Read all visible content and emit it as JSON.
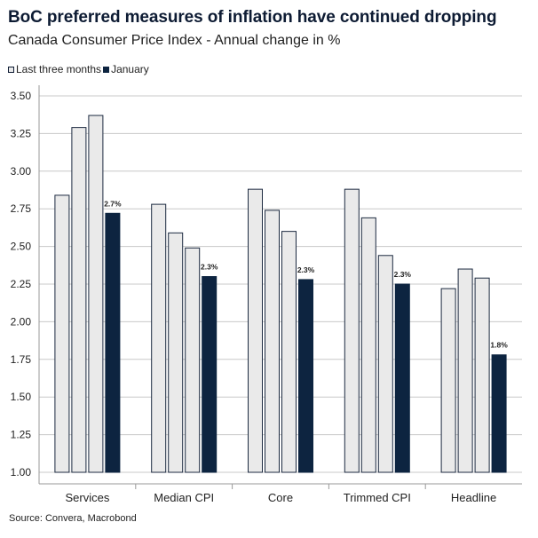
{
  "title": "BoC preferred measures of inflation have continued dropping",
  "subtitle": "Canada Consumer Price Index - Annual change in %",
  "source": "Source: Convera, Macrobond",
  "colors": {
    "light_bar": "#eaeaea",
    "dark_bar": "#0d2440",
    "grid": "#c8c8c8",
    "outline": "#1c2a40"
  },
  "legend": [
    {
      "label": "Last three months",
      "icon": "light-square"
    },
    {
      "label": "January",
      "icon": "dark-square"
    }
  ],
  "chart_data": {
    "type": "bar",
    "categories": [
      "Services",
      "Median CPI",
      "Core",
      "Trimmed CPI",
      "Headline"
    ],
    "series": [
      {
        "name": "Last three months",
        "values": [
          [
            2.84,
            3.29,
            3.37
          ],
          [
            2.78,
            2.59,
            2.49
          ],
          [
            2.88,
            2.74,
            2.6
          ],
          [
            2.88,
            2.69,
            2.44
          ],
          [
            2.22,
            2.35,
            2.29
          ]
        ]
      },
      {
        "name": "January",
        "values": [
          2.72,
          2.3,
          2.28,
          2.25,
          1.78
        ]
      }
    ],
    "data_labels": [
      "2.7%",
      "2.3%",
      "2.3%",
      "2.3%",
      "1.8%"
    ],
    "yticks": [
      "1.00",
      "1.25",
      "1.50",
      "1.75",
      "2.00",
      "2.25",
      "2.50",
      "2.75",
      "3.00",
      "3.25",
      "3.50"
    ],
    "ylim": [
      1.0,
      3.5
    ],
    "grid": true,
    "legend_position": "top-left"
  }
}
